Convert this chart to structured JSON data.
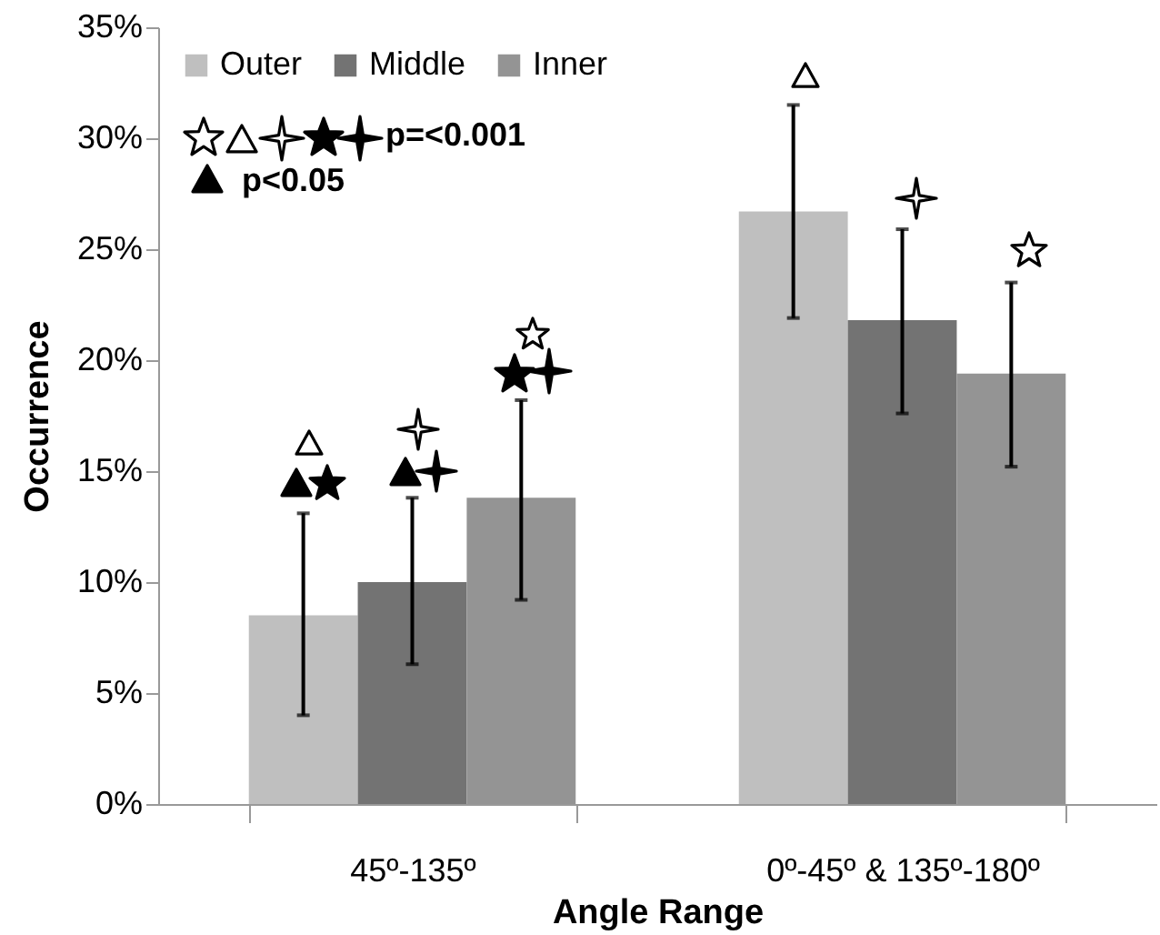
{
  "chart_data": {
    "type": "bar",
    "xlabel": "Angle Range",
    "ylabel": "Occurrence",
    "categories": [
      "45º-135º",
      "0º-45º & 135º-180º"
    ],
    "series": [
      {
        "name": "Outer",
        "color": "#bfbfbf",
        "values": [
          8.5,
          26.7
        ],
        "errors": [
          [
            4.0,
            13.1
          ],
          [
            21.9,
            31.5
          ]
        ]
      },
      {
        "name": "Middle",
        "color": "#737373",
        "values": [
          10.0,
          21.8
        ],
        "errors": [
          [
            6.3,
            13.8
          ],
          [
            17.6,
            25.9
          ]
        ]
      },
      {
        "name": "Inner",
        "color": "#949494",
        "values": [
          13.8,
          19.4
        ],
        "errors": [
          [
            9.2,
            18.2
          ],
          [
            15.2,
            23.5
          ]
        ]
      }
    ],
    "ylim": [
      0,
      35
    ],
    "yticks": [
      {
        "value": 0,
        "label": "0%"
      },
      {
        "value": 5,
        "label": "5%"
      },
      {
        "value": 10,
        "label": "10%"
      },
      {
        "value": 15,
        "label": "15%"
      },
      {
        "value": 20,
        "label": "20%"
      },
      {
        "value": 25,
        "label": "25%"
      },
      {
        "value": 30,
        "label": "30%"
      },
      {
        "value": 35,
        "label": "35%"
      }
    ],
    "legend": "top left",
    "grid": false,
    "annotations": [
      "p=<0.001",
      "p<0.05"
    ]
  }
}
